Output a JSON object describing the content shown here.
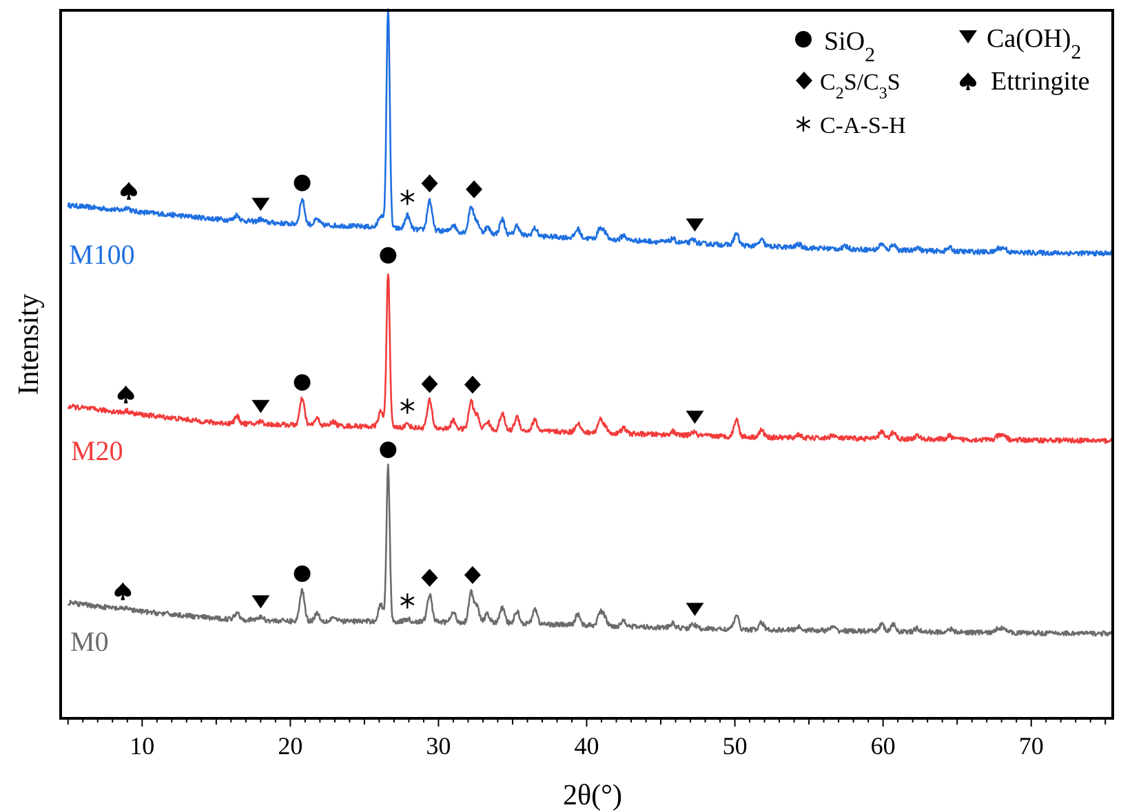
{
  "chart_data": {
    "type": "line",
    "xlabel": "2θ(°)",
    "ylabel": "Intensity",
    "xlim": [
      4.5,
      75.5
    ],
    "xticks": [
      10,
      20,
      30,
      40,
      50,
      60,
      70
    ],
    "grid": false,
    "legend_position": "top-right",
    "legend": [
      {
        "marker": "circle",
        "label": "SiO",
        "sub": "2",
        "tail": ""
      },
      {
        "marker": "triangle-down",
        "label": "Ca(OH)",
        "sub": "2",
        "tail": ""
      },
      {
        "marker": "diamond",
        "label": "C",
        "sub": "2",
        "tail": "S/C",
        "sub2": "3",
        "tail2": "S"
      },
      {
        "marker": "spade",
        "label": "Ettringite"
      },
      {
        "marker": "asterisk",
        "label": "C-A-S-H"
      }
    ],
    "series": [
      {
        "name": "M100",
        "color": "#1e6fe0",
        "baseline": [
          [
            5,
            70
          ],
          [
            10,
            60
          ],
          [
            15,
            50
          ],
          [
            20,
            43
          ],
          [
            25,
            39
          ],
          [
            30,
            33
          ],
          [
            35,
            27
          ],
          [
            40,
            22
          ],
          [
            45,
            17
          ],
          [
            50,
            12
          ],
          [
            55,
            8
          ],
          [
            60,
            5
          ],
          [
            65,
            3
          ],
          [
            70,
            1
          ],
          [
            75.5,
            0
          ]
        ],
        "peaks": [
          [
            9.0,
            5
          ],
          [
            16.4,
            8
          ],
          [
            18.0,
            4
          ],
          [
            20.8,
            36
          ],
          [
            21.8,
            8
          ],
          [
            26.1,
            18
          ],
          [
            26.6,
            320
          ],
          [
            27.9,
            20
          ],
          [
            29.4,
            44
          ],
          [
            31.0,
            10
          ],
          [
            32.2,
            38
          ],
          [
            32.6,
            16
          ],
          [
            33.3,
            9
          ],
          [
            34.3,
            22
          ],
          [
            35.3,
            14
          ],
          [
            36.5,
            11
          ],
          [
            39.4,
            13
          ],
          [
            40.9,
            15
          ],
          [
            41.2,
            9
          ],
          [
            42.5,
            7
          ],
          [
            45.8,
            5
          ],
          [
            47.2,
            5
          ],
          [
            50.1,
            17
          ],
          [
            51.8,
            9
          ],
          [
            54.3,
            5
          ],
          [
            57.5,
            4
          ],
          [
            59.9,
            9
          ],
          [
            60.7,
            9
          ],
          [
            62.3,
            5
          ],
          [
            64.5,
            5
          ],
          [
            67.8,
            6
          ],
          [
            68.2,
            6
          ]
        ]
      },
      {
        "name": "M20",
        "color": "#f23b3b",
        "baseline": [
          [
            5,
            50
          ],
          [
            10,
            38
          ],
          [
            15,
            26
          ],
          [
            20,
            23
          ],
          [
            25,
            21
          ],
          [
            30,
            18
          ],
          [
            35,
            15
          ],
          [
            40,
            12
          ],
          [
            45,
            9
          ],
          [
            50,
            6
          ],
          [
            55,
            4
          ],
          [
            60,
            3
          ],
          [
            65,
            2
          ],
          [
            70,
            1
          ],
          [
            75.5,
            0
          ]
        ],
        "peaks": [
          [
            9.0,
            3
          ],
          [
            16.4,
            10
          ],
          [
            18.0,
            4
          ],
          [
            20.8,
            38
          ],
          [
            21.8,
            10
          ],
          [
            22.9,
            6
          ],
          [
            26.1,
            22
          ],
          [
            26.6,
            225
          ],
          [
            27.9,
            5
          ],
          [
            29.4,
            40
          ],
          [
            31.0,
            12
          ],
          [
            32.2,
            40
          ],
          [
            32.6,
            20
          ],
          [
            33.3,
            12
          ],
          [
            34.3,
            24
          ],
          [
            35.3,
            20
          ],
          [
            36.5,
            16
          ],
          [
            39.4,
            14
          ],
          [
            40.9,
            18
          ],
          [
            41.2,
            10
          ],
          [
            42.5,
            8
          ],
          [
            45.8,
            5
          ],
          [
            47.2,
            5
          ],
          [
            50.1,
            25
          ],
          [
            51.8,
            10
          ],
          [
            54.3,
            5
          ],
          [
            56.6,
            5
          ],
          [
            59.9,
            11
          ],
          [
            60.7,
            10
          ],
          [
            62.3,
            5
          ],
          [
            64.5,
            5
          ],
          [
            67.8,
            6
          ],
          [
            68.2,
            6
          ]
        ]
      },
      {
        "name": "M0",
        "color": "#6b6b6b",
        "baseline": [
          [
            5,
            45
          ],
          [
            10,
            32
          ],
          [
            15,
            22
          ],
          [
            20,
            18
          ],
          [
            25,
            18
          ],
          [
            30,
            17
          ],
          [
            35,
            15
          ],
          [
            40,
            12
          ],
          [
            45,
            9
          ],
          [
            50,
            6
          ],
          [
            55,
            5
          ],
          [
            60,
            3
          ],
          [
            65,
            2
          ],
          [
            70,
            1
          ],
          [
            75.5,
            0
          ]
        ],
        "peaks": [
          [
            9.0,
            3
          ],
          [
            16.4,
            10
          ],
          [
            18.0,
            5
          ],
          [
            20.8,
            45
          ],
          [
            21.8,
            12
          ],
          [
            22.9,
            6
          ],
          [
            26.1,
            25
          ],
          [
            26.6,
            225
          ],
          [
            27.9,
            4
          ],
          [
            29.4,
            40
          ],
          [
            31.0,
            14
          ],
          [
            32.2,
            44
          ],
          [
            32.6,
            22
          ],
          [
            33.3,
            13
          ],
          [
            34.3,
            22
          ],
          [
            35.3,
            18
          ],
          [
            36.5,
            22
          ],
          [
            39.4,
            16
          ],
          [
            40.9,
            18
          ],
          [
            41.2,
            12
          ],
          [
            42.5,
            9
          ],
          [
            45.8,
            6
          ],
          [
            47.2,
            6
          ],
          [
            50.1,
            20
          ],
          [
            51.8,
            10
          ],
          [
            54.3,
            5
          ],
          [
            56.6,
            5
          ],
          [
            59.9,
            11
          ],
          [
            60.7,
            10
          ],
          [
            62.3,
            5
          ],
          [
            64.5,
            5
          ],
          [
            67.8,
            7
          ],
          [
            68.2,
            7
          ]
        ]
      }
    ],
    "annotations": [
      {
        "series": "M100",
        "items": [
          [
            "spade",
            9.1
          ],
          [
            "triangle-down",
            18.0
          ],
          [
            "circle",
            20.8
          ],
          [
            "circle",
            26.6
          ],
          [
            "asterisk",
            27.9
          ],
          [
            "diamond",
            29.4
          ],
          [
            "diamond",
            32.4
          ],
          [
            "triangle-down",
            47.3
          ]
        ]
      },
      {
        "series": "M20",
        "items": [
          [
            "spade",
            8.9
          ],
          [
            "triangle-down",
            18.0
          ],
          [
            "circle",
            20.8
          ],
          [
            "circle",
            26.6
          ],
          [
            "asterisk",
            27.9
          ],
          [
            "diamond",
            29.4
          ],
          [
            "diamond",
            32.3
          ],
          [
            "triangle-down",
            47.3
          ]
        ]
      },
      {
        "series": "M0",
        "items": [
          [
            "spade",
            8.7
          ],
          [
            "triangle-down",
            18.0
          ],
          [
            "circle",
            20.8
          ],
          [
            "circle",
            26.6
          ],
          [
            "asterisk",
            27.9
          ],
          [
            "diamond",
            29.4
          ],
          [
            "diamond",
            32.3
          ],
          [
            "triangle-down",
            47.3
          ]
        ]
      }
    ]
  }
}
